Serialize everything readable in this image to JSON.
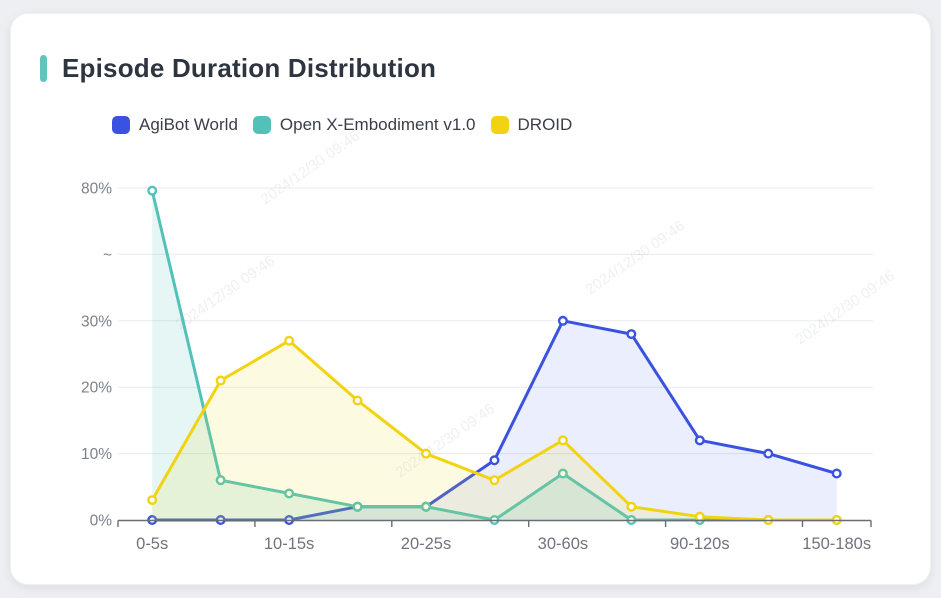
{
  "card": {
    "title": "Episode Duration Distribution",
    "accent_color": "#5fc5bc",
    "background": "#ffffff",
    "page_background": "#edeff2"
  },
  "watermark": {
    "text": "2024/12/30 09:46"
  },
  "chart_data": {
    "type": "line",
    "title": "Episode Duration Distribution",
    "xlabel": "",
    "ylabel": "",
    "grid": true,
    "legend_position": "top",
    "y_axis_break_between": [
      30,
      80
    ],
    "y_tick_labels": [
      "0%",
      "10%",
      "20%",
      "30%",
      "~",
      "80%"
    ],
    "x_labels": [
      "0-5s",
      "",
      "10-15s",
      "",
      "20-25s",
      "",
      "30-60s",
      "",
      "90-120s",
      "",
      "150-180s"
    ],
    "series": [
      {
        "name": "AgiBot World",
        "color": "#3b52e0",
        "fill": "rgba(61,84,224,0.10)",
        "values": [
          0,
          0,
          0,
          2,
          2,
          9,
          30,
          28,
          12,
          10,
          7
        ]
      },
      {
        "name": "Open X-Embodiment v1.0",
        "color": "#52c2b8",
        "fill": "rgba(82,194,184,0.15)",
        "values": [
          79,
          6,
          4,
          2,
          2,
          0,
          7,
          0,
          0,
          0,
          0
        ]
      },
      {
        "name": "DROID",
        "color": "#f2d312",
        "fill": "rgba(242,211,18,0.12)",
        "values": [
          3,
          21,
          27,
          18,
          10,
          6,
          12,
          2,
          0.5,
          0,
          0
        ]
      }
    ],
    "axis_colors": {
      "grid": "#e8ebef",
      "axis_line": "#686d76",
      "tick_text": "#7c818b"
    }
  }
}
